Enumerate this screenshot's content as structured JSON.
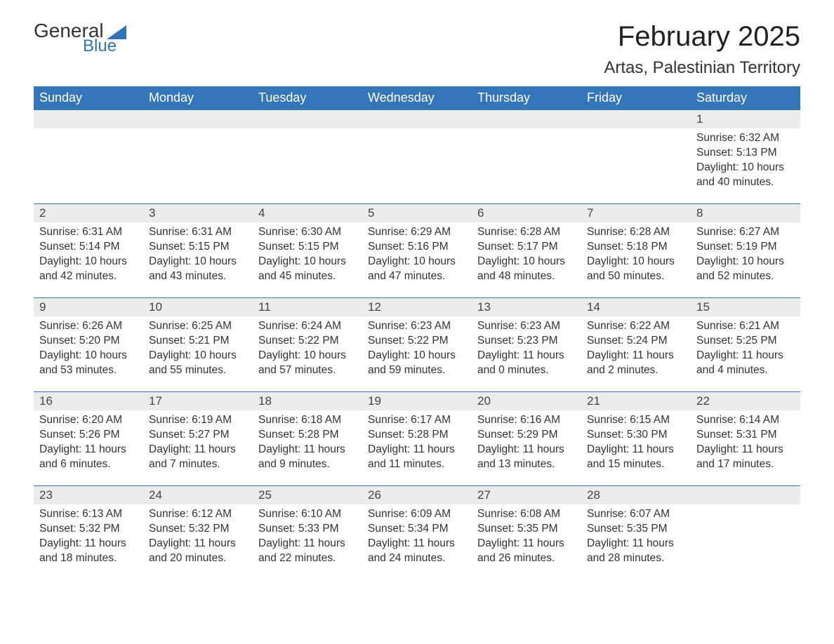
{
  "logo": {
    "word1": "General",
    "word2": "Blue"
  },
  "title": "February 2025",
  "location": "Artas, Palestinian Territory",
  "colors": {
    "brand_blue": "#2f74b5",
    "header_bg": "#3576ba",
    "header_text": "#ffffff",
    "daynum_bg": "#ececec",
    "text": "#333333",
    "page_bg": "#ffffff"
  },
  "weekdays": [
    "Sunday",
    "Monday",
    "Tuesday",
    "Wednesday",
    "Thursday",
    "Friday",
    "Saturday"
  ],
  "labels": {
    "sunrise": "Sunrise:",
    "sunset": "Sunset:",
    "daylight": "Daylight:"
  },
  "weeks": [
    [
      null,
      null,
      null,
      null,
      null,
      null,
      {
        "day": "1",
        "sunrise": "6:32 AM",
        "sunset": "5:13 PM",
        "daylight": "10 hours and 40 minutes."
      }
    ],
    [
      {
        "day": "2",
        "sunrise": "6:31 AM",
        "sunset": "5:14 PM",
        "daylight": "10 hours and 42 minutes."
      },
      {
        "day": "3",
        "sunrise": "6:31 AM",
        "sunset": "5:15 PM",
        "daylight": "10 hours and 43 minutes."
      },
      {
        "day": "4",
        "sunrise": "6:30 AM",
        "sunset": "5:15 PM",
        "daylight": "10 hours and 45 minutes."
      },
      {
        "day": "5",
        "sunrise": "6:29 AM",
        "sunset": "5:16 PM",
        "daylight": "10 hours and 47 minutes."
      },
      {
        "day": "6",
        "sunrise": "6:28 AM",
        "sunset": "5:17 PM",
        "daylight": "10 hours and 48 minutes."
      },
      {
        "day": "7",
        "sunrise": "6:28 AM",
        "sunset": "5:18 PM",
        "daylight": "10 hours and 50 minutes."
      },
      {
        "day": "8",
        "sunrise": "6:27 AM",
        "sunset": "5:19 PM",
        "daylight": "10 hours and 52 minutes."
      }
    ],
    [
      {
        "day": "9",
        "sunrise": "6:26 AM",
        "sunset": "5:20 PM",
        "daylight": "10 hours and 53 minutes."
      },
      {
        "day": "10",
        "sunrise": "6:25 AM",
        "sunset": "5:21 PM",
        "daylight": "10 hours and 55 minutes."
      },
      {
        "day": "11",
        "sunrise": "6:24 AM",
        "sunset": "5:22 PM",
        "daylight": "10 hours and 57 minutes."
      },
      {
        "day": "12",
        "sunrise": "6:23 AM",
        "sunset": "5:22 PM",
        "daylight": "10 hours and 59 minutes."
      },
      {
        "day": "13",
        "sunrise": "6:23 AM",
        "sunset": "5:23 PM",
        "daylight": "11 hours and 0 minutes."
      },
      {
        "day": "14",
        "sunrise": "6:22 AM",
        "sunset": "5:24 PM",
        "daylight": "11 hours and 2 minutes."
      },
      {
        "day": "15",
        "sunrise": "6:21 AM",
        "sunset": "5:25 PM",
        "daylight": "11 hours and 4 minutes."
      }
    ],
    [
      {
        "day": "16",
        "sunrise": "6:20 AM",
        "sunset": "5:26 PM",
        "daylight": "11 hours and 6 minutes."
      },
      {
        "day": "17",
        "sunrise": "6:19 AM",
        "sunset": "5:27 PM",
        "daylight": "11 hours and 7 minutes."
      },
      {
        "day": "18",
        "sunrise": "6:18 AM",
        "sunset": "5:28 PM",
        "daylight": "11 hours and 9 minutes."
      },
      {
        "day": "19",
        "sunrise": "6:17 AM",
        "sunset": "5:28 PM",
        "daylight": "11 hours and 11 minutes."
      },
      {
        "day": "20",
        "sunrise": "6:16 AM",
        "sunset": "5:29 PM",
        "daylight": "11 hours and 13 minutes."
      },
      {
        "day": "21",
        "sunrise": "6:15 AM",
        "sunset": "5:30 PM",
        "daylight": "11 hours and 15 minutes."
      },
      {
        "day": "22",
        "sunrise": "6:14 AM",
        "sunset": "5:31 PM",
        "daylight": "11 hours and 17 minutes."
      }
    ],
    [
      {
        "day": "23",
        "sunrise": "6:13 AM",
        "sunset": "5:32 PM",
        "daylight": "11 hours and 18 minutes."
      },
      {
        "day": "24",
        "sunrise": "6:12 AM",
        "sunset": "5:32 PM",
        "daylight": "11 hours and 20 minutes."
      },
      {
        "day": "25",
        "sunrise": "6:10 AM",
        "sunset": "5:33 PM",
        "daylight": "11 hours and 22 minutes."
      },
      {
        "day": "26",
        "sunrise": "6:09 AM",
        "sunset": "5:34 PM",
        "daylight": "11 hours and 24 minutes."
      },
      {
        "day": "27",
        "sunrise": "6:08 AM",
        "sunset": "5:35 PM",
        "daylight": "11 hours and 26 minutes."
      },
      {
        "day": "28",
        "sunrise": "6:07 AM",
        "sunset": "5:35 PM",
        "daylight": "11 hours and 28 minutes."
      },
      null
    ]
  ]
}
